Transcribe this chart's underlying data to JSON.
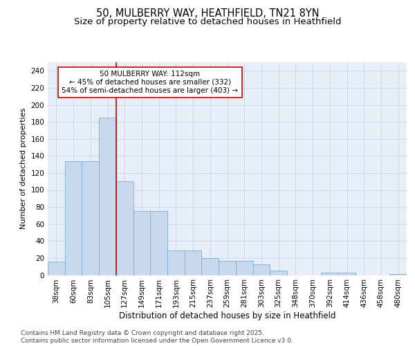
{
  "title_line1": "50, MULBERRY WAY, HEATHFIELD, TN21 8YN",
  "title_line2": "Size of property relative to detached houses in Heathfield",
  "xlabel": "Distribution of detached houses by size in Heathfield",
  "ylabel": "Number of detached properties",
  "categories": [
    "38sqm",
    "60sqm",
    "83sqm",
    "105sqm",
    "127sqm",
    "149sqm",
    "171sqm",
    "193sqm",
    "215sqm",
    "237sqm",
    "259sqm",
    "281sqm",
    "303sqm",
    "325sqm",
    "348sqm",
    "370sqm",
    "392sqm",
    "414sqm",
    "436sqm",
    "458sqm",
    "480sqm"
  ],
  "values": [
    16,
    134,
    134,
    185,
    110,
    75,
    75,
    29,
    29,
    20,
    17,
    17,
    13,
    5,
    0,
    0,
    3,
    3,
    0,
    0,
    1
  ],
  "bar_color": "#c8d9ed",
  "bar_edge_color": "#7aaed4",
  "grid_color": "#cdd6e8",
  "background_color": "#e8eef8",
  "vline_x": 3.5,
  "vline_color": "#cc0000",
  "annotation_text": "50 MULBERRY WAY: 112sqm\n← 45% of detached houses are smaller (332)\n54% of semi-detached houses are larger (403) →",
  "annotation_box_color": "#ffffff",
  "annotation_box_edge": "#cc0000",
  "ylim": [
    0,
    250
  ],
  "yticks": [
    0,
    20,
    40,
    60,
    80,
    100,
    120,
    140,
    160,
    180,
    200,
    220,
    240
  ],
  "footer_text": "Contains HM Land Registry data © Crown copyright and database right 2025.\nContains public sector information licensed under the Open Government Licence v3.0.",
  "title_fontsize": 10.5,
  "subtitle_fontsize": 9.5,
  "ylabel_fontsize": 8,
  "xlabel_fontsize": 8.5,
  "tick_fontsize": 7.5,
  "annotation_fontsize": 7.5,
  "footer_fontsize": 6.5
}
